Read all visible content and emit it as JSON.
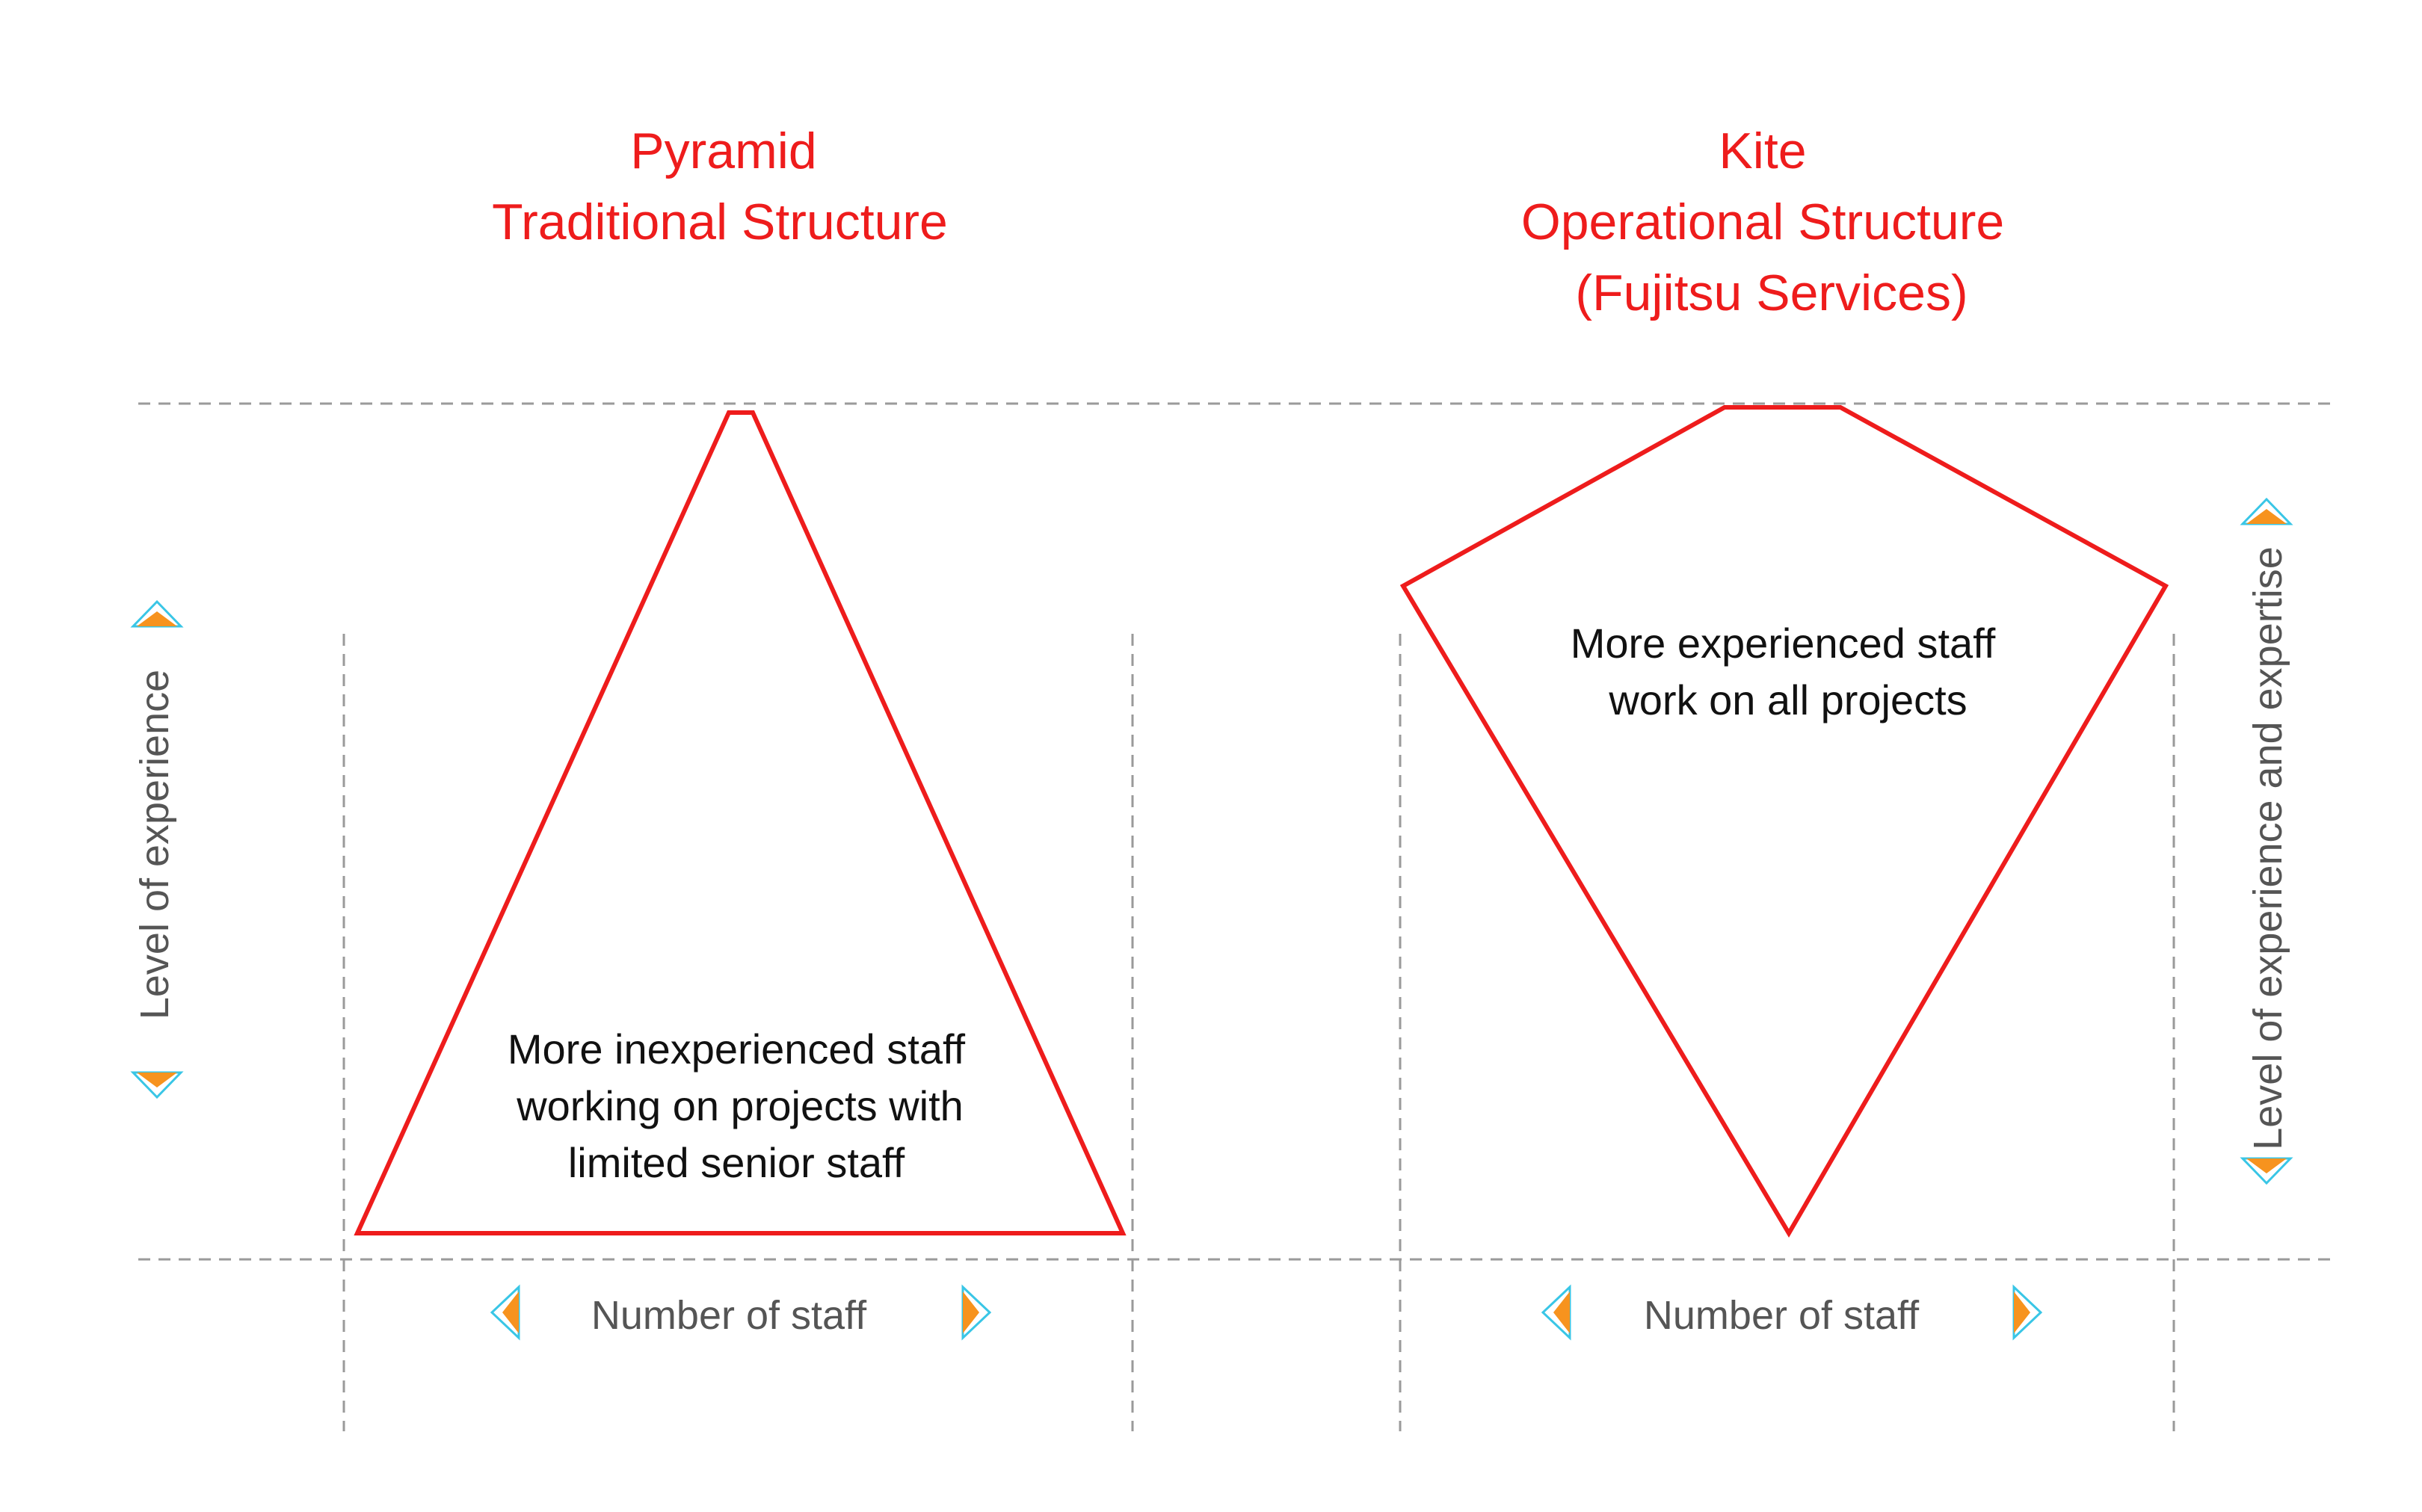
{
  "pyramid": {
    "title_line1": "Pyramid",
    "title_line2": "Traditional Structure",
    "description_line1": "More inexperienced staff",
    "description_line2": "working on projects with",
    "description_line3": "limited senior staff",
    "x_axis_label": "Number of staff",
    "y_axis_label": "Level of experience"
  },
  "kite": {
    "title_line1": "Kite",
    "title_line2": "Operational Structure",
    "title_line3": "(Fujitsu Services)",
    "description_line1": "More experienced staff",
    "description_line2": "work on all projects",
    "x_axis_label": "Number of staff",
    "y_axis_label": "Level of experience and expertise"
  },
  "colors": {
    "title": "#ee1c1c",
    "shape_outline": "#ee1c1c",
    "arrow_fill": "#f7931e",
    "arrow_outline": "#39c6e6",
    "guide_lines": "#9a9a9a"
  }
}
